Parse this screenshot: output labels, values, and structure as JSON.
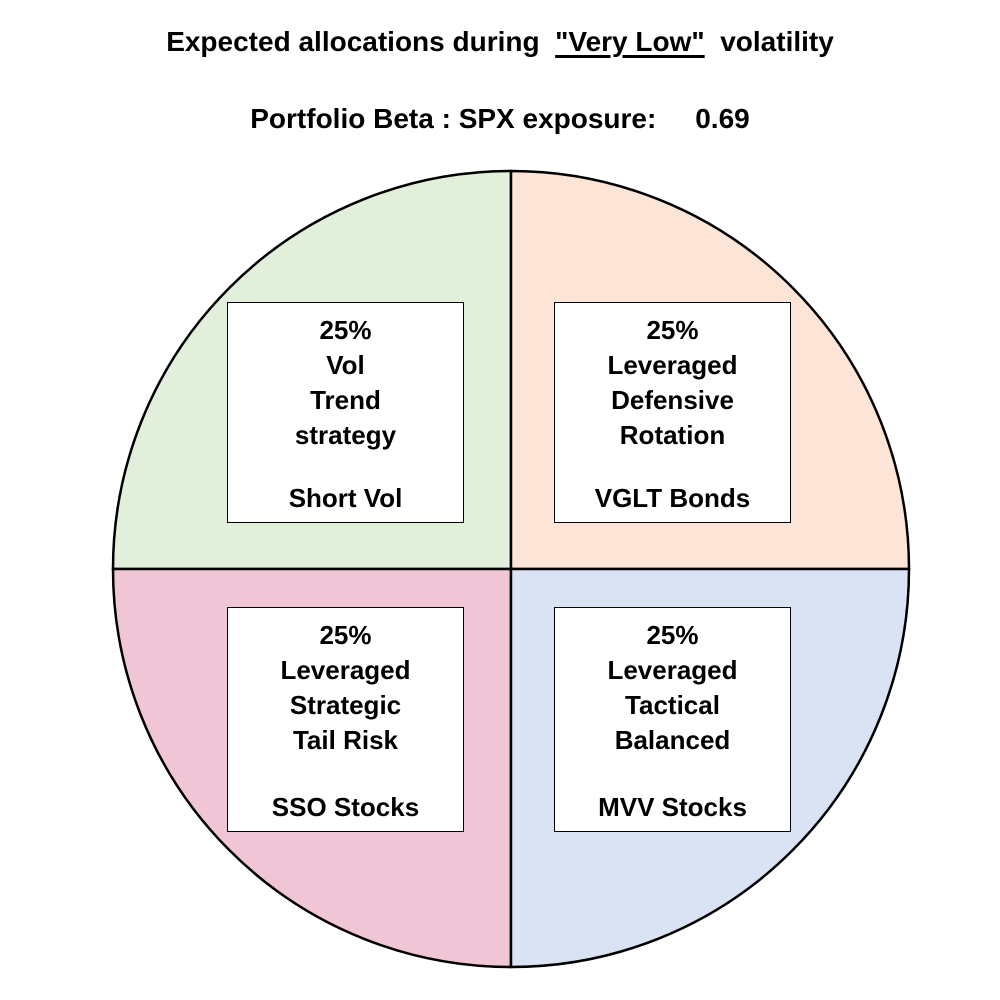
{
  "title": {
    "prefix": "Expected allocations during ",
    "highlight": "\"Very Low\"",
    "suffix": "  volatility"
  },
  "subtitle": {
    "label": "Portfolio Beta : SPX exposure:",
    "value": "0.69"
  },
  "chart_data": {
    "type": "pie",
    "title": "Expected allocations during \"Very Low\" volatility",
    "slices": [
      {
        "percent": "25%",
        "value": 25,
        "lines": [
          "Vol",
          "Trend",
          "strategy"
        ],
        "footer": "Short Vol",
        "color": "#e2efda"
      },
      {
        "percent": "25%",
        "value": 25,
        "lines": [
          "Leveraged",
          "Defensive",
          "Rotation"
        ],
        "footer": "VGLT Bonds",
        "color": "#fce4d6"
      },
      {
        "percent": "25%",
        "value": 25,
        "lines": [
          "Leveraged",
          "Strategic",
          "Tail Risk"
        ],
        "footer": "SSO Stocks",
        "color": "#f0c6d6"
      },
      {
        "percent": "25%",
        "value": 25,
        "lines": [
          "Leveraged",
          "Tactical",
          "Balanced"
        ],
        "footer": "MVV Stocks",
        "color": "#dae3f3"
      }
    ]
  }
}
